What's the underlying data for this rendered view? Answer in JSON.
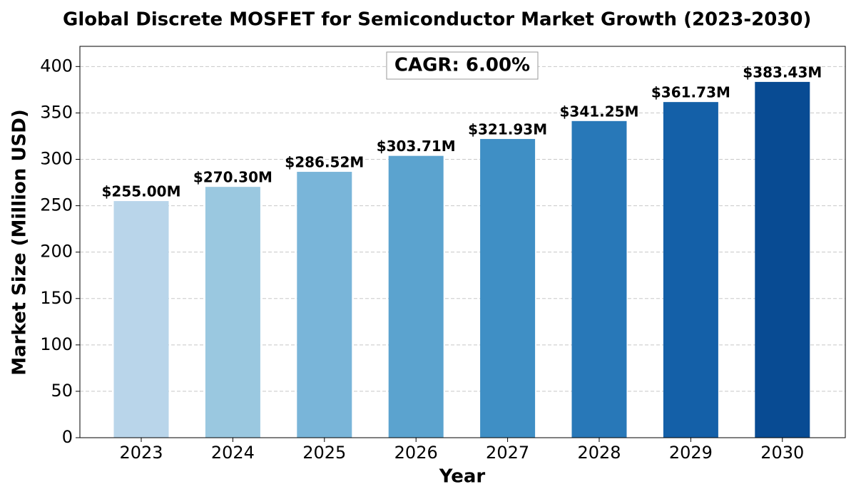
{
  "chart_data": {
    "type": "bar",
    "title": "Global Discrete MOSFET for Semiconductor Market Growth (2023-2030)",
    "xlabel": "Year",
    "ylabel": "Market Size (Million USD)",
    "annotation": "CAGR: 6.00%",
    "categories": [
      "2023",
      "2024",
      "2025",
      "2026",
      "2027",
      "2028",
      "2029",
      "2030"
    ],
    "values": [
      255.0,
      270.3,
      286.52,
      303.71,
      321.93,
      341.25,
      361.73,
      383.43
    ],
    "value_labels": [
      "$255.00M",
      "$270.30M",
      "$286.52M",
      "$303.71M",
      "$321.93M",
      "$341.25M",
      "$361.73M",
      "$383.43M"
    ],
    "colors": [
      "#b9d5ea",
      "#9ac8e0",
      "#79b5d9",
      "#5ba3cf",
      "#3f8fc5",
      "#2878b8",
      "#1460a8",
      "#084b93"
    ],
    "ylim": [
      0,
      421.77
    ],
    "yticks": [
      0,
      50,
      100,
      150,
      200,
      250,
      300,
      350,
      400
    ],
    "grid": true
  }
}
